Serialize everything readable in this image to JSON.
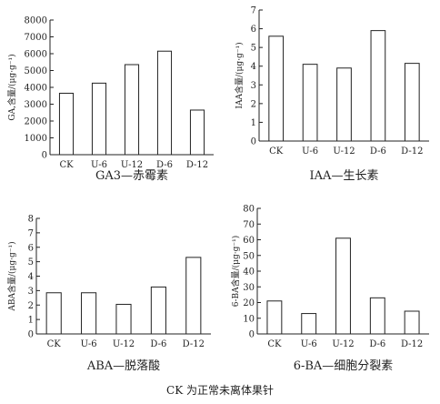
{
  "chart_data": [
    {
      "type": "bar",
      "caption": "GA3—赤霉素",
      "ylabel": "GA,含量/(μg·g⁻¹)",
      "categories": [
        "CK",
        "U-6",
        "U-12",
        "D-6",
        "D-12"
      ],
      "values": [
        3650,
        4250,
        5350,
        6150,
        2650
      ],
      "ylim": [
        0,
        8000
      ],
      "yticks": [
        0,
        1000,
        2000,
        3000,
        4000,
        5000,
        6000,
        7000,
        8000
      ]
    },
    {
      "type": "bar",
      "caption": "IAA—生长素",
      "ylabel": "IAA含量/(μg·g⁻¹)",
      "categories": [
        "CK",
        "U-6",
        "U-12",
        "D-6",
        "D-12"
      ],
      "values": [
        5.6,
        4.1,
        3.9,
        5.9,
        4.15
      ],
      "ylim": [
        0,
        7
      ],
      "yticks": [
        0,
        1,
        2,
        3,
        4,
        5,
        6,
        7
      ]
    },
    {
      "type": "bar",
      "caption": "ABA—脱落酸",
      "ylabel": "ABA含量/(μg·g⁻¹)",
      "categories": [
        "CK",
        "U-6",
        "U-12",
        "D-6",
        "D-12"
      ],
      "values": [
        2.85,
        2.85,
        2.05,
        3.25,
        5.3
      ],
      "ylim": [
        0,
        8
      ],
      "yticks": [
        0,
        1,
        2,
        3,
        4,
        5,
        6,
        7,
        8
      ]
    },
    {
      "type": "bar",
      "caption": "6-BA—细胞分裂素",
      "ylabel": "6-BA含量/(μg·g⁻¹)",
      "categories": [
        "CK",
        "U-6",
        "U-12",
        "D-6",
        "D-12"
      ],
      "values": [
        21,
        13,
        61,
        23,
        14.5
      ],
      "ylim": [
        0,
        80
      ],
      "yticks": [
        0,
        10,
        20,
        30,
        40,
        50,
        60,
        70,
        80
      ]
    }
  ],
  "footnote": "CK 为正常未离体果针"
}
